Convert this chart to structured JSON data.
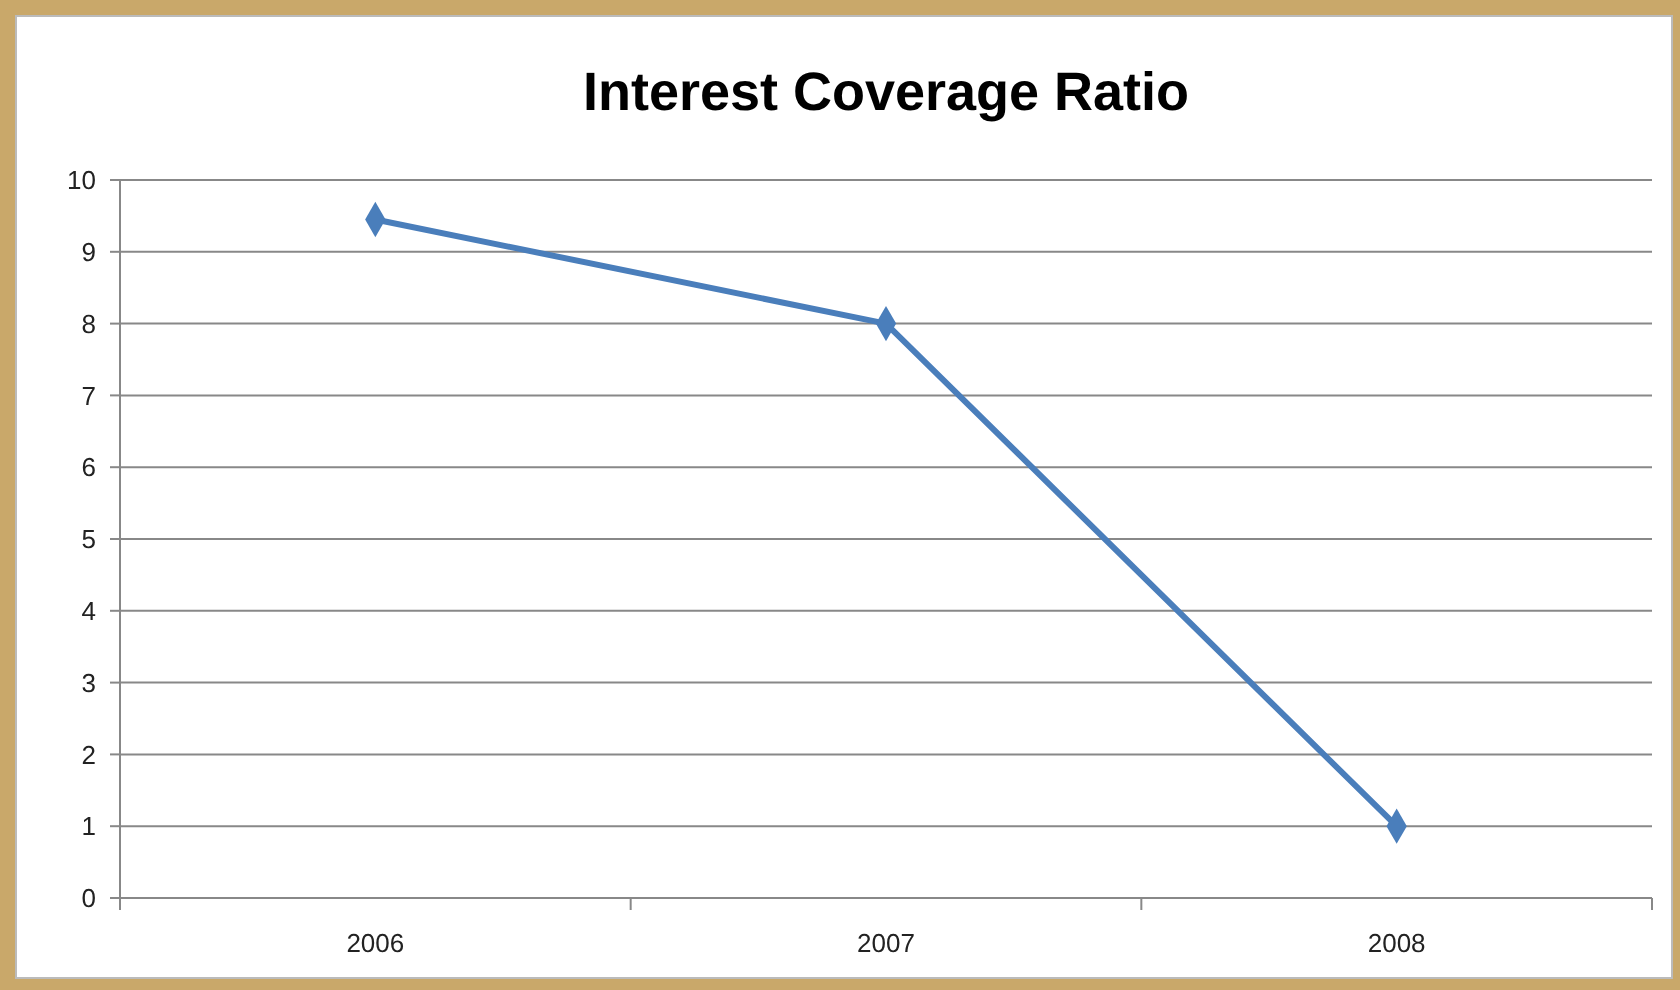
{
  "chart_data": {
    "type": "line",
    "title": "Interest Coverage Ratio",
    "categories": [
      "2006",
      "2007",
      "2008"
    ],
    "series": [
      {
        "color": "#4a7ebb",
        "values": [
          9.45,
          8,
          1
        ]
      }
    ],
    "ylim": [
      0,
      10
    ],
    "yticks": [
      0,
      1,
      2,
      3,
      4,
      5,
      6,
      7,
      8,
      9,
      10
    ],
    "grid": "y",
    "marker": "diamond"
  }
}
